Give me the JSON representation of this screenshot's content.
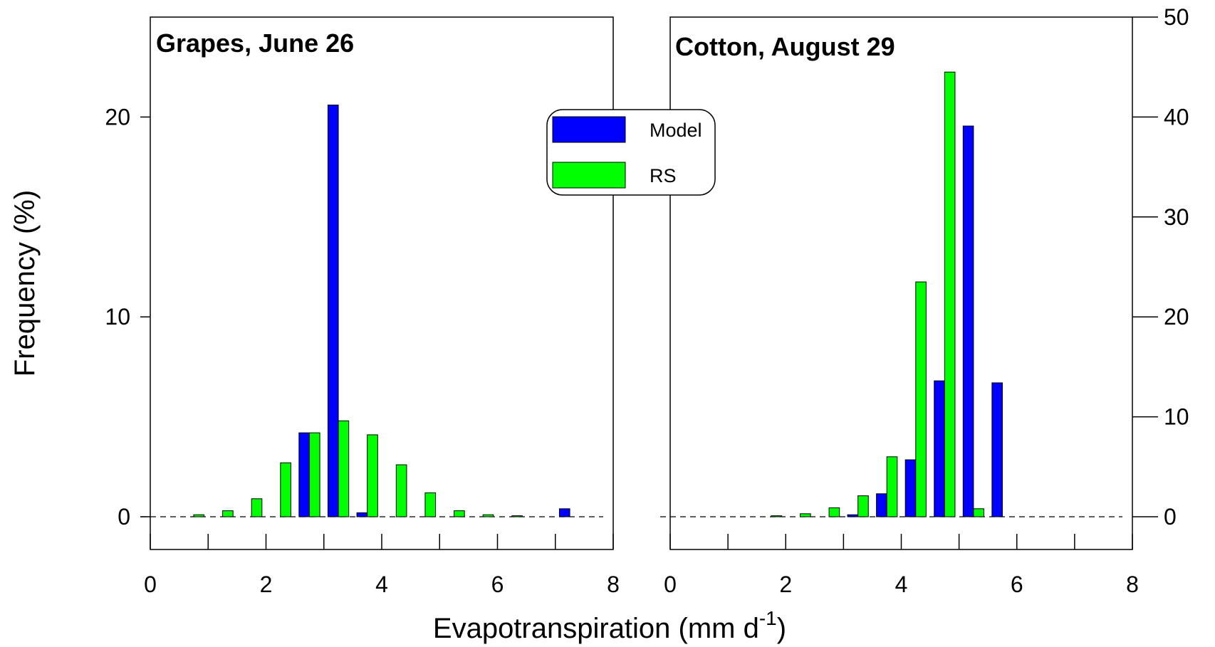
{
  "chart_data": [
    {
      "type": "bar",
      "title": "Grapes, June 26",
      "xlabel": "Evapotranspiration (mm d",
      "xlabel_sup": "-1",
      "xlabel_suffix": ")",
      "ylabel": "Frequency (%)",
      "xlim": [
        0,
        8
      ],
      "ylim": [
        -2.5,
        25
      ],
      "xticks": [
        0,
        2,
        4,
        6,
        8
      ],
      "yticks": [
        0,
        10,
        20
      ],
      "bin_centers": [
        0.25,
        0.75,
        1.25,
        1.75,
        2.25,
        2.75,
        3.25,
        3.75,
        4.25,
        4.75,
        5.25,
        5.75,
        6.25,
        6.75,
        7.25,
        7.75
      ],
      "series": [
        {
          "name": "Model",
          "color": "#0000ff",
          "values": [
            0,
            0,
            0,
            0,
            0,
            4.2,
            20.6,
            0.2,
            0,
            0,
            0,
            0,
            0,
            0,
            0.4,
            0
          ]
        },
        {
          "name": "RS",
          "color": "#00ff00",
          "values": [
            0,
            0.1,
            0.3,
            0.9,
            2.7,
            4.2,
            4.8,
            4.1,
            2.6,
            1.2,
            0.3,
            0.1,
            0.05,
            0,
            0,
            0
          ]
        }
      ]
    },
    {
      "type": "bar",
      "title": "Cotton, August 29",
      "xlabel": "Evapotranspiration (mm d",
      "xlabel_sup": "-1",
      "xlabel_suffix": ")",
      "ylabel": "Frequency (%)",
      "xlim": [
        0,
        8
      ],
      "ylim": [
        -5,
        50
      ],
      "xticks": [
        0,
        2,
        4,
        6,
        8
      ],
      "yticks": [
        0,
        10,
        20,
        30,
        40,
        50
      ],
      "bin_centers": [
        0.25,
        0.75,
        1.25,
        1.75,
        2.25,
        2.75,
        3.25,
        3.75,
        4.25,
        4.75,
        5.25,
        5.75,
        6.25,
        6.75,
        7.25,
        7.75
      ],
      "series": [
        {
          "name": "Model",
          "color": "#0000ff",
          "values": [
            0,
            0,
            0,
            0,
            0,
            0,
            0.2,
            2.3,
            5.7,
            13.6,
            39.1,
            13.4,
            0,
            0,
            0,
            0
          ]
        },
        {
          "name": "RS",
          "color": "#00ff00",
          "values": [
            0,
            0,
            0,
            0.1,
            0.3,
            0.9,
            2.1,
            6.0,
            23.5,
            44.5,
            0.8,
            0,
            0,
            0,
            0,
            0
          ]
        }
      ]
    }
  ],
  "legend": {
    "placement": "top-center",
    "items": [
      {
        "label": "Model",
        "color": "#0000ff"
      },
      {
        "label": "RS",
        "color": "#00ff00"
      }
    ]
  }
}
